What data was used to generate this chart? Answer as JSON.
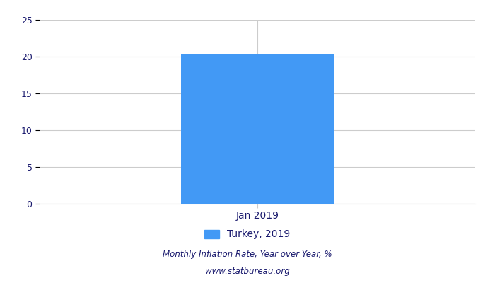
{
  "categories": [
    "Jan 2019"
  ],
  "values": [
    20.35
  ],
  "bar_color": "#4299f5",
  "ylim": [
    0,
    25
  ],
  "yticks": [
    0,
    5,
    10,
    15,
    20,
    25
  ],
  "legend_label": "Turkey, 2019",
  "footnote_line1": "Monthly Inflation Rate, Year over Year, %",
  "footnote_line2": "www.statbureau.org",
  "footnote_color": "#1a1a6e",
  "background_color": "#ffffff",
  "grid_color": "#cccccc",
  "tick_label_color": "#1a1a6e",
  "xlabel_color": "#1a1a6e",
  "bar_width": 0.35
}
